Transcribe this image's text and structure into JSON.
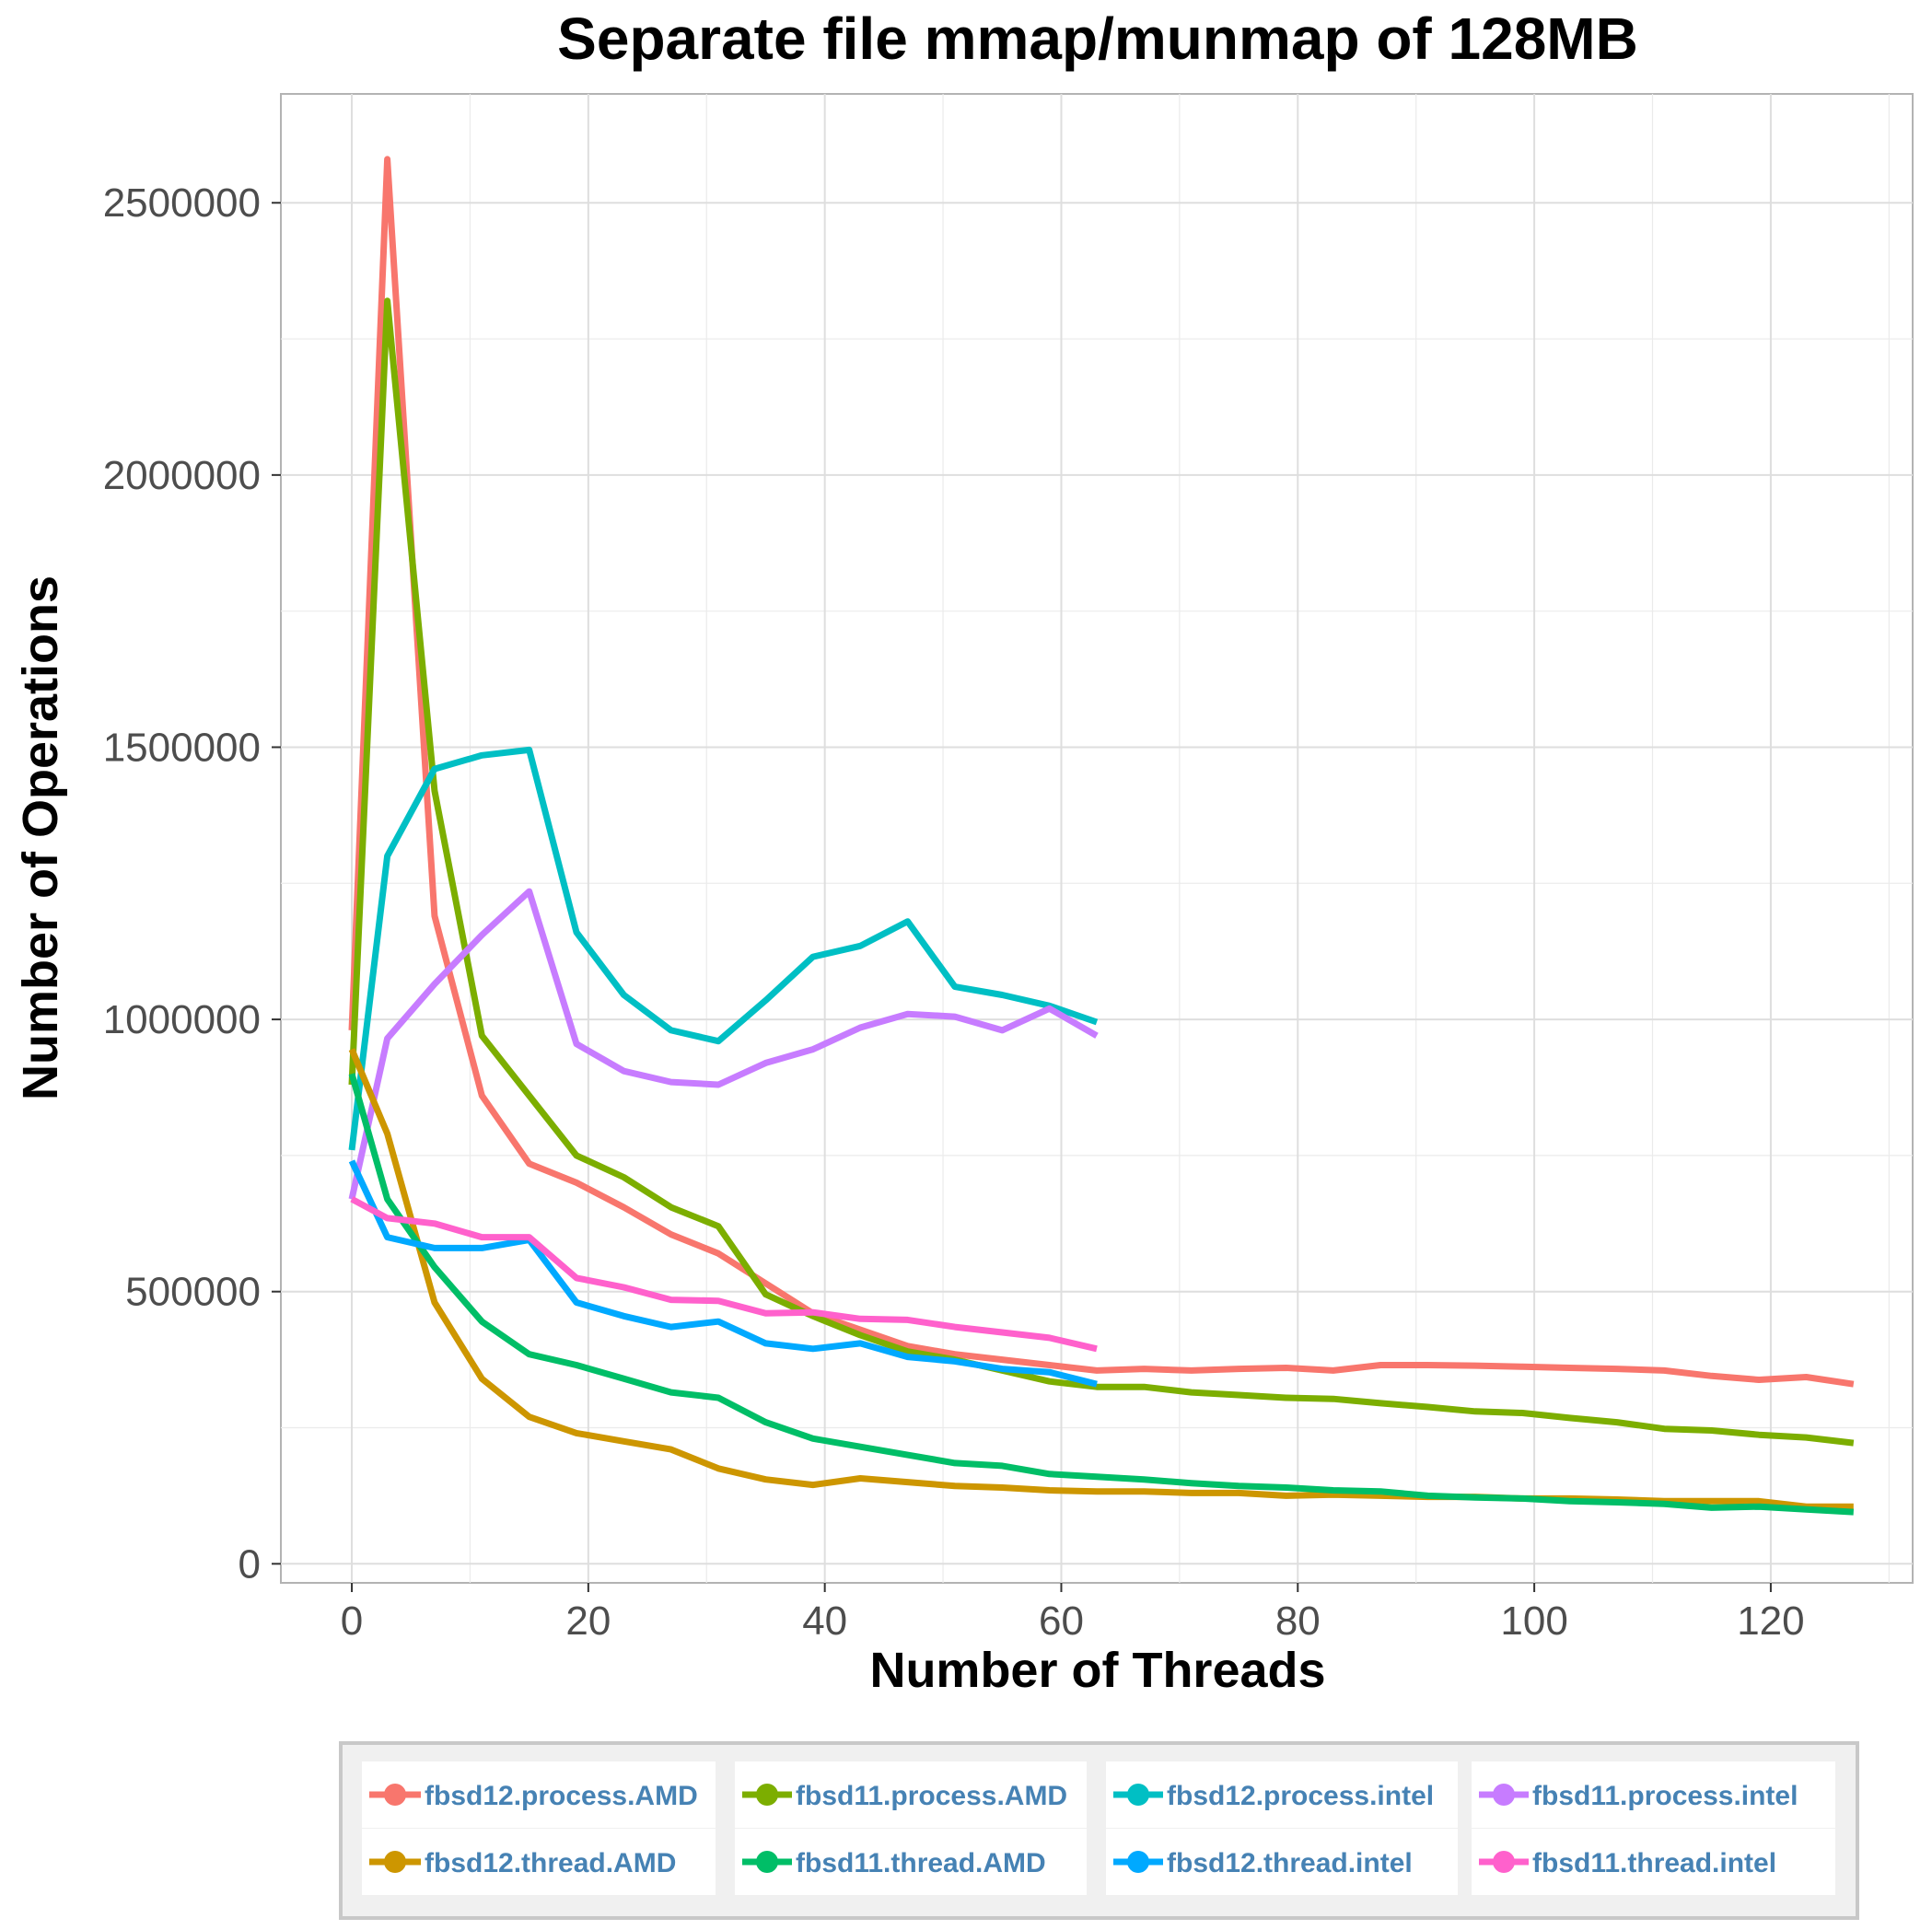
{
  "chart_data": {
    "type": "line",
    "title": "Separate file mmap/munmap of 128MB",
    "xlabel": "Number of Threads",
    "ylabel": "Number of Operations",
    "xlim": [
      -6,
      132
    ],
    "ylim": [
      -35000,
      2700000
    ],
    "xticks": [
      0,
      20,
      40,
      60,
      80,
      100,
      120
    ],
    "xtick_labels": [
      "0",
      "20",
      "40",
      "60",
      "80",
      "100",
      "120"
    ],
    "yticks": [
      0,
      500000,
      1000000,
      1500000,
      2000000,
      2500000
    ],
    "ytick_labels": [
      "0",
      "500000",
      "1000000",
      "1500000",
      "2000000",
      "2500000"
    ],
    "grid": true,
    "legend_position": "bottom",
    "series": [
      {
        "name": "fbsd12.process.AMD",
        "color": "#F8766D",
        "x": [
          0,
          3,
          7,
          11,
          15,
          19,
          23,
          27,
          31,
          35,
          39,
          43,
          47,
          51,
          55,
          59,
          63,
          67,
          71,
          75,
          79,
          83,
          87,
          91,
          95,
          99,
          103,
          107,
          111,
          115,
          119,
          123,
          127
        ],
        "y": [
          980000,
          2580000,
          1190000,
          860000,
          735000,
          700000,
          655000,
          605000,
          570000,
          515000,
          460000,
          430000,
          400000,
          385000,
          375000,
          365000,
          355000,
          358000,
          355000,
          358000,
          360000,
          355000,
          365000,
          365000,
          364000,
          362000,
          360000,
          358000,
          355000,
          345000,
          338000,
          343000,
          330000
        ]
      },
      {
        "name": "fbsd11.process.AMD",
        "color": "#7CAE00",
        "x": [
          0,
          3,
          7,
          11,
          15,
          19,
          23,
          27,
          31,
          35,
          39,
          43,
          47,
          51,
          55,
          59,
          63,
          67,
          71,
          75,
          79,
          83,
          87,
          91,
          95,
          99,
          103,
          107,
          111,
          115,
          119,
          123,
          127
        ],
        "y": [
          880000,
          2320000,
          1420000,
          970000,
          860000,
          750000,
          710000,
          655000,
          620000,
          495000,
          455000,
          420000,
          390000,
          375000,
          355000,
          335000,
          325000,
          325000,
          315000,
          310000,
          305000,
          303000,
          295000,
          288000,
          280000,
          277000,
          268000,
          260000,
          248000,
          245000,
          237000,
          232000,
          222000
        ]
      },
      {
        "name": "fbsd12.process.intel",
        "color": "#00BFC4",
        "x": [
          0,
          3,
          7,
          11,
          15,
          19,
          23,
          27,
          31,
          35,
          39,
          43,
          47,
          51,
          55,
          59,
          63
        ],
        "y": [
          760000,
          1300000,
          1460000,
          1485000,
          1495000,
          1160000,
          1045000,
          980000,
          960000,
          1035000,
          1115000,
          1135000,
          1180000,
          1060000,
          1045000,
          1025000,
          995000
        ]
      },
      {
        "name": "fbsd11.process.intel",
        "color": "#C77CFF",
        "x": [
          0,
          3,
          7,
          11,
          15,
          19,
          23,
          27,
          31,
          35,
          39,
          43,
          47,
          51,
          55,
          59,
          63
        ],
        "y": [
          670000,
          965000,
          1065000,
          1155000,
          1235000,
          955000,
          905000,
          885000,
          880000,
          920000,
          945000,
          985000,
          1010000,
          1005000,
          980000,
          1020000,
          970000
        ]
      },
      {
        "name": "fbsd12.thread.AMD",
        "color": "#CD9600",
        "x": [
          0,
          3,
          7,
          11,
          15,
          19,
          23,
          27,
          31,
          35,
          39,
          43,
          47,
          51,
          55,
          59,
          63,
          67,
          71,
          75,
          79,
          83,
          87,
          91,
          95,
          99,
          103,
          107,
          111,
          115,
          119,
          123,
          127
        ],
        "y": [
          945000,
          790000,
          480000,
          340000,
          270000,
          240000,
          225000,
          210000,
          175000,
          155000,
          145000,
          157000,
          150000,
          143000,
          140000,
          135000,
          133000,
          133000,
          130000,
          130000,
          125000,
          127000,
          125000,
          123000,
          123000,
          120000,
          120000,
          118000,
          115000,
          115000,
          115000,
          105000,
          105000
        ]
      },
      {
        "name": "fbsd11.thread.AMD",
        "color": "#00BE67",
        "x": [
          0,
          3,
          7,
          11,
          15,
          19,
          23,
          27,
          31,
          35,
          39,
          43,
          47,
          51,
          55,
          59,
          63,
          67,
          71,
          75,
          79,
          83,
          87,
          91,
          95,
          99,
          103,
          107,
          111,
          115,
          119,
          123,
          127
        ],
        "y": [
          900000,
          670000,
          545000,
          445000,
          385000,
          365000,
          340000,
          315000,
          305000,
          260000,
          230000,
          215000,
          200000,
          185000,
          180000,
          165000,
          160000,
          155000,
          148000,
          143000,
          140000,
          135000,
          133000,
          125000,
          122000,
          120000,
          115000,
          113000,
          110000,
          103000,
          105000,
          100000,
          95000
        ]
      },
      {
        "name": "fbsd12.thread.intel",
        "color": "#00A9FF",
        "x": [
          0,
          3,
          7,
          11,
          15,
          19,
          23,
          27,
          31,
          35,
          39,
          43,
          47,
          51,
          55,
          59,
          63
        ],
        "y": [
          740000,
          600000,
          580000,
          580000,
          595000,
          480000,
          455000,
          435000,
          445000,
          405000,
          395000,
          405000,
          380000,
          372000,
          358000,
          352000,
          330000
        ]
      },
      {
        "name": "fbsd11.thread.intel",
        "color": "#FF61CC",
        "x": [
          0,
          3,
          7,
          11,
          15,
          19,
          23,
          27,
          31,
          35,
          39,
          43,
          47,
          51,
          55,
          59,
          63
        ],
        "y": [
          670000,
          635000,
          625000,
          600000,
          600000,
          525000,
          508000,
          485000,
          483000,
          460000,
          462000,
          450000,
          448000,
          435000,
          425000,
          415000,
          395000
        ]
      }
    ]
  }
}
